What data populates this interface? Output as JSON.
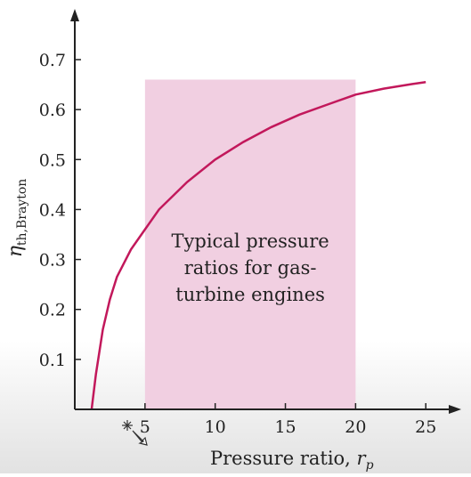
{
  "chart_data": {
    "type": "line",
    "xlabel_main": "Pressure ratio, ",
    "xlabel_var": "r",
    "xlabel_sub": "p",
    "ylabel_var": "η",
    "ylabel_sub": "th,Brayton",
    "xlim": [
      0,
      26
    ],
    "ylim": [
      0,
      0.7
    ],
    "x_ticks": [
      5,
      10,
      15,
      20,
      25
    ],
    "y_ticks": [
      0.1,
      0.2,
      0.3,
      0.4,
      0.5,
      0.6,
      0.7
    ],
    "x_tick_labels": [
      "5",
      "10",
      "15",
      "20",
      "25"
    ],
    "y_tick_labels": [
      "0.1",
      "0.2",
      "0.3",
      "0.4",
      "0.5",
      "0.6",
      "0.7"
    ],
    "shaded_region": {
      "x_range": [
        5,
        20
      ],
      "y_range": [
        0,
        0.66
      ],
      "label_lines": [
        "Typical pressure",
        "ratios for gas-",
        "turbine engines"
      ],
      "color": "#f1cfe1"
    },
    "series": [
      {
        "color": "#c2185b",
        "x": [
          1.2,
          1.5,
          2,
          2.5,
          3,
          4,
          5,
          6,
          8,
          10,
          12,
          14,
          16,
          18,
          20,
          22,
          24,
          25
        ],
        "y": [
          0.0,
          0.07,
          0.16,
          0.22,
          0.265,
          0.32,
          0.36,
          0.4,
          0.455,
          0.5,
          0.535,
          0.565,
          0.59,
          0.61,
          0.63,
          0.642,
          0.651,
          0.655
        ]
      }
    ],
    "grid": false,
    "legend": "none"
  }
}
